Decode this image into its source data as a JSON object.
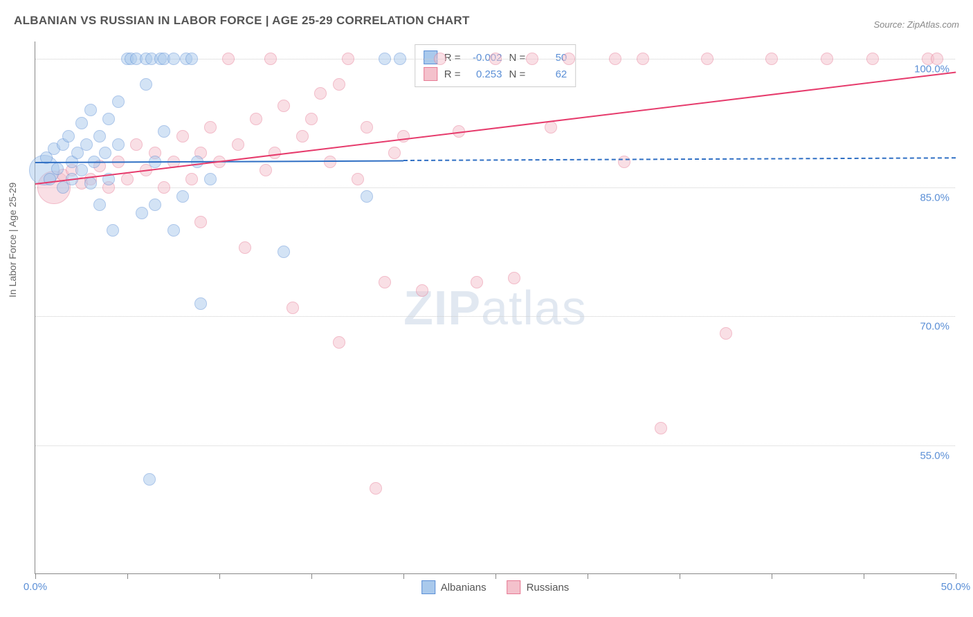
{
  "title": "ALBANIAN VS RUSSIAN IN LABOR FORCE | AGE 25-29 CORRELATION CHART",
  "source": "Source: ZipAtlas.com",
  "y_axis_label": "In Labor Force | Age 25-29",
  "watermark": "ZIPatlas",
  "chart": {
    "type": "scatter",
    "background_color": "#ffffff",
    "grid_color": "#cccccc",
    "axis_color": "#888888",
    "tick_label_color": "#5b8fd6",
    "title_fontsize": 17,
    "label_fontsize": 14,
    "tick_fontsize": 15,
    "xlim": [
      0,
      50
    ],
    "ylim": [
      40,
      102
    ],
    "yticks": [
      55.0,
      70.0,
      85.0,
      100.0
    ],
    "ytick_labels": [
      "55.0%",
      "70.0%",
      "85.0%",
      "100.0%"
    ],
    "xticks": [
      0,
      5,
      10,
      15,
      20,
      25,
      30,
      35,
      40,
      45,
      50
    ],
    "xtick_labels_shown": {
      "0": "0.0%",
      "50": "50.0%"
    },
    "marker_radius": 9,
    "marker_opacity": 0.5,
    "series": [
      {
        "name": "Albanians",
        "fill_color": "#a9c9ec",
        "stroke_color": "#5b8fd6",
        "trend_color": "#2f6fc4",
        "R": "-0.002",
        "N": "50",
        "trend": {
          "x0": 0,
          "y0": 88.0,
          "x1": 20,
          "y1": 88.2,
          "dashed_to_x": 50
        },
        "points": [
          {
            "x": 0.5,
            "y": 87.0,
            "r": 22
          },
          {
            "x": 0.6,
            "y": 88.5
          },
          {
            "x": 0.8,
            "y": 86.0
          },
          {
            "x": 1.0,
            "y": 89.5
          },
          {
            "x": 1.2,
            "y": 87.2
          },
          {
            "x": 1.5,
            "y": 90.0
          },
          {
            "x": 1.5,
            "y": 85.0
          },
          {
            "x": 1.8,
            "y": 91.0
          },
          {
            "x": 2.0,
            "y": 88.0
          },
          {
            "x": 2.0,
            "y": 86.0
          },
          {
            "x": 2.3,
            "y": 89.0
          },
          {
            "x": 2.5,
            "y": 92.5
          },
          {
            "x": 2.5,
            "y": 87.0
          },
          {
            "x": 2.8,
            "y": 90.0
          },
          {
            "x": 3.0,
            "y": 94.0
          },
          {
            "x": 3.0,
            "y": 85.5
          },
          {
            "x": 3.2,
            "y": 88.0
          },
          {
            "x": 3.5,
            "y": 91.0
          },
          {
            "x": 3.5,
            "y": 83.0
          },
          {
            "x": 3.8,
            "y": 89.0
          },
          {
            "x": 4.0,
            "y": 93.0
          },
          {
            "x": 4.0,
            "y": 86.0
          },
          {
            "x": 4.2,
            "y": 80.0
          },
          {
            "x": 4.5,
            "y": 90.0
          },
          {
            "x": 4.5,
            "y": 95.0
          },
          {
            "x": 5.0,
            "y": 100.0
          },
          {
            "x": 5.2,
            "y": 100.0
          },
          {
            "x": 5.5,
            "y": 100.0
          },
          {
            "x": 5.8,
            "y": 82.0
          },
          {
            "x": 6.0,
            "y": 97.0
          },
          {
            "x": 6.0,
            "y": 100.0
          },
          {
            "x": 6.2,
            "y": 51.0
          },
          {
            "x": 6.3,
            "y": 100.0
          },
          {
            "x": 6.5,
            "y": 83.0
          },
          {
            "x": 6.5,
            "y": 88.0
          },
          {
            "x": 6.8,
            "y": 100.0
          },
          {
            "x": 7.0,
            "y": 91.5
          },
          {
            "x": 7.0,
            "y": 100.0
          },
          {
            "x": 7.5,
            "y": 80.0
          },
          {
            "x": 7.5,
            "y": 100.0
          },
          {
            "x": 8.0,
            "y": 84.0
          },
          {
            "x": 8.2,
            "y": 100.0
          },
          {
            "x": 8.5,
            "y": 100.0
          },
          {
            "x": 8.8,
            "y": 88.0
          },
          {
            "x": 9.0,
            "y": 71.5
          },
          {
            "x": 9.5,
            "y": 86.0
          },
          {
            "x": 13.5,
            "y": 77.5
          },
          {
            "x": 18.0,
            "y": 84.0
          },
          {
            "x": 19.0,
            "y": 100.0
          },
          {
            "x": 19.8,
            "y": 100.0
          }
        ]
      },
      {
        "name": "Russians",
        "fill_color": "#f4c1cc",
        "stroke_color": "#e77a94",
        "trend_color": "#e63b6c",
        "R": "0.253",
        "N": "62",
        "trend": {
          "x0": 0,
          "y0": 85.5,
          "x1": 50,
          "y1": 98.5
        },
        "points": [
          {
            "x": 1.0,
            "y": 85.0,
            "r": 24
          },
          {
            "x": 1.5,
            "y": 86.5
          },
          {
            "x": 2.0,
            "y": 87.0
          },
          {
            "x": 2.5,
            "y": 85.5
          },
          {
            "x": 3.0,
            "y": 86.0
          },
          {
            "x": 3.5,
            "y": 87.5
          },
          {
            "x": 4.0,
            "y": 85.0
          },
          {
            "x": 4.5,
            "y": 88.0
          },
          {
            "x": 5.0,
            "y": 86.0
          },
          {
            "x": 5.5,
            "y": 90.0
          },
          {
            "x": 6.0,
            "y": 87.0
          },
          {
            "x": 6.5,
            "y": 89.0
          },
          {
            "x": 7.0,
            "y": 85.0
          },
          {
            "x": 7.5,
            "y": 88.0
          },
          {
            "x": 8.0,
            "y": 91.0
          },
          {
            "x": 8.5,
            "y": 86.0
          },
          {
            "x": 9.0,
            "y": 89.0
          },
          {
            "x": 9.0,
            "y": 81.0
          },
          {
            "x": 9.5,
            "y": 92.0
          },
          {
            "x": 10.0,
            "y": 88.0
          },
          {
            "x": 10.5,
            "y": 100.0
          },
          {
            "x": 11.0,
            "y": 90.0
          },
          {
            "x": 11.4,
            "y": 78.0
          },
          {
            "x": 12.0,
            "y": 93.0
          },
          {
            "x": 12.5,
            "y": 87.0
          },
          {
            "x": 12.8,
            "y": 100.0
          },
          {
            "x": 13.0,
            "y": 89.0
          },
          {
            "x": 13.5,
            "y": 94.5
          },
          {
            "x": 14.0,
            "y": 71.0
          },
          {
            "x": 14.5,
            "y": 91.0
          },
          {
            "x": 15.0,
            "y": 93.0
          },
          {
            "x": 15.5,
            "y": 96.0
          },
          {
            "x": 16.0,
            "y": 88.0
          },
          {
            "x": 16.5,
            "y": 97.0
          },
          {
            "x": 16.5,
            "y": 67.0
          },
          {
            "x": 17.0,
            "y": 100.0
          },
          {
            "x": 17.5,
            "y": 86.0
          },
          {
            "x": 18.0,
            "y": 92.0
          },
          {
            "x": 18.5,
            "y": 50.0
          },
          {
            "x": 19.0,
            "y": 74.0
          },
          {
            "x": 19.5,
            "y": 89.0
          },
          {
            "x": 20.0,
            "y": 91.0
          },
          {
            "x": 21.0,
            "y": 73.0
          },
          {
            "x": 22.0,
            "y": 100.0
          },
          {
            "x": 23.0,
            "y": 91.5
          },
          {
            "x": 24.0,
            "y": 74.0
          },
          {
            "x": 25.0,
            "y": 100.0
          },
          {
            "x": 26.0,
            "y": 74.5
          },
          {
            "x": 27.0,
            "y": 100.0
          },
          {
            "x": 28.0,
            "y": 92.0
          },
          {
            "x": 29.0,
            "y": 100.0
          },
          {
            "x": 31.5,
            "y": 100.0
          },
          {
            "x": 33.0,
            "y": 100.0
          },
          {
            "x": 34.0,
            "y": 57.0
          },
          {
            "x": 36.5,
            "y": 100.0
          },
          {
            "x": 37.5,
            "y": 68.0
          },
          {
            "x": 40.0,
            "y": 100.0
          },
          {
            "x": 43.0,
            "y": 100.0
          },
          {
            "x": 45.5,
            "y": 100.0
          },
          {
            "x": 48.5,
            "y": 100.0
          },
          {
            "x": 49.0,
            "y": 100.0
          },
          {
            "x": 32.0,
            "y": 88.0
          }
        ]
      }
    ]
  },
  "legend_top": {
    "r_label": "R =",
    "n_label": "N ="
  },
  "legend_bottom": [
    {
      "label": "Albanians",
      "fill": "#a9c9ec",
      "stroke": "#5b8fd6"
    },
    {
      "label": "Russians",
      "fill": "#f4c1cc",
      "stroke": "#e77a94"
    }
  ]
}
